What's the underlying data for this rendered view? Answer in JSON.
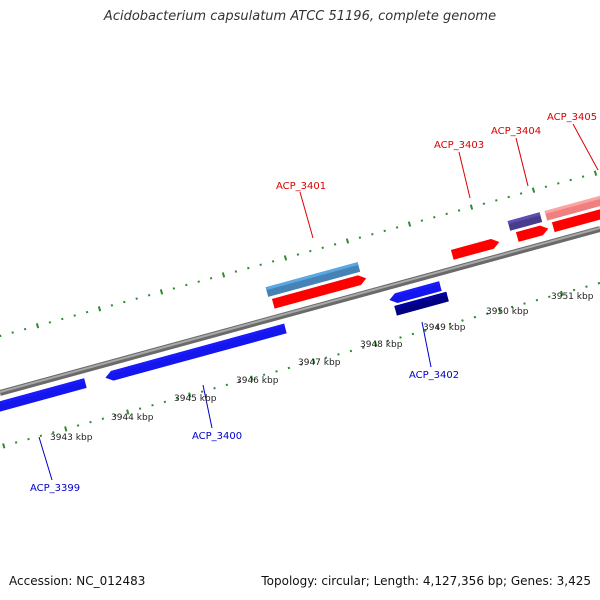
{
  "title": "Acidobacterium capsulatum ATCC 51196, complete genome",
  "footer": {
    "accession": "Accession: NC_012483",
    "summary": "Topology: circular; Length: 4,127,356 bp; Genes: 3,425"
  },
  "colors": {
    "backbone": "#808080",
    "tick": "#2e8b2e",
    "forward_gene": "#ff0000",
    "reverse_gene": "#1515ee",
    "forward_label": "#dd0000",
    "reverse_label": "#0000cc",
    "forward_feature_steelblue": "#4682b4",
    "forward_feature_slate": "#483d8b",
    "forward_feature_pink": "#f08080",
    "reverse_feature_navy": "#000080"
  },
  "scale_labels": [
    "3943 kbp",
    "3944 kbp",
    "3945 kbp",
    "3946 kbp",
    "3947 kbp",
    "3948 kbp",
    "3949 kbp",
    "3950 kbp",
    "3951 kbp"
  ],
  "genes": [
    {
      "id": "ACP_3399",
      "label": "ACP_3399",
      "strand": "reverse"
    },
    {
      "id": "ACP_3400",
      "label": "ACP_3400",
      "strand": "reverse"
    },
    {
      "id": "ACP_3401",
      "label": "ACP_3401",
      "strand": "forward"
    },
    {
      "id": "ACP_3402",
      "label": "ACP_3402",
      "strand": "reverse"
    },
    {
      "id": "ACP_3403",
      "label": "ACP_3403",
      "strand": "forward"
    },
    {
      "id": "ACP_3404",
      "label": "ACP_3404",
      "strand": "forward"
    },
    {
      "id": "ACP_3405",
      "label": "ACP_3405",
      "strand": "forward"
    }
  ]
}
